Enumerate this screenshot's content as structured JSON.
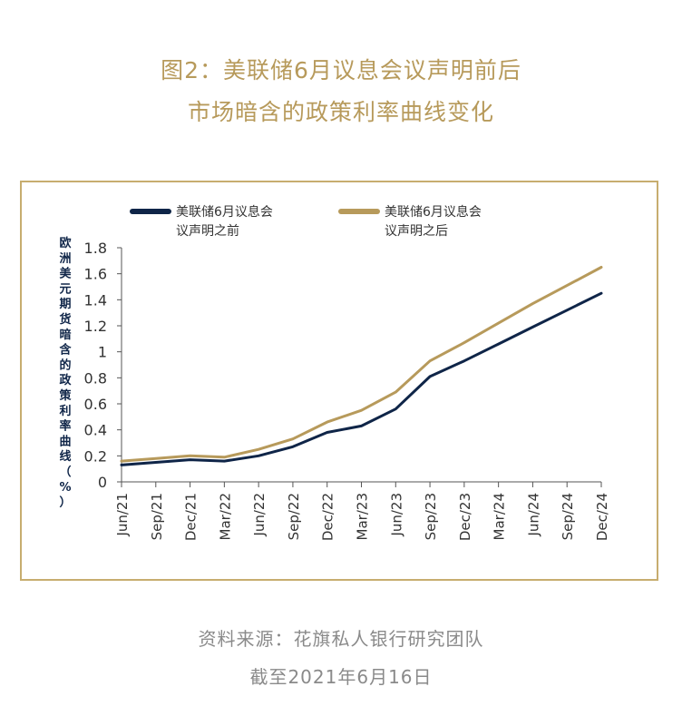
{
  "title_line1": "图2：美联储6月议息会议声明前后",
  "title_line2": "市场暗含的政策利率曲线变化",
  "source_line1": "资料来源：花旗私人银行研究团队",
  "source_line2": "截至2021年6月16日",
  "chart_data": {
    "type": "line",
    "ylabel": "欧洲美元期货暗含的政策利率曲线（%）",
    "ylim": [
      0,
      1.8
    ],
    "yticks": [
      "0",
      "0.2",
      "0.4",
      "0.6",
      "0.8",
      "1",
      "1.2",
      "1.4",
      "1.6",
      "1.8"
    ],
    "categories": [
      "Jun/21",
      "Sep/21",
      "Dec/21",
      "Mar/22",
      "Jun/22",
      "Sep/22",
      "Dec/22",
      "Mar/23",
      "Jun/23",
      "Sep/23",
      "Dec/23",
      "Mar/24",
      "Jun/24",
      "Sep/24",
      "Dec/24"
    ],
    "legend_position": "top",
    "grid": false,
    "series": [
      {
        "name": "美联储6月议息会议声明之前",
        "legend_line1": "美联储6月议息会",
        "legend_line2": "议声明之前",
        "color": "#0f2548",
        "values": [
          0.13,
          0.15,
          0.17,
          0.16,
          0.2,
          0.27,
          0.38,
          0.43,
          0.56,
          0.81,
          0.93,
          1.06,
          1.19,
          1.32,
          1.45
        ]
      },
      {
        "name": "美联储6月议息会议声明之后",
        "legend_line1": "美联储6月议息会",
        "legend_line2": "议声明之后",
        "color": "#b79a5b",
        "values": [
          0.16,
          0.18,
          0.2,
          0.19,
          0.25,
          0.33,
          0.46,
          0.55,
          0.69,
          0.93,
          1.07,
          1.22,
          1.37,
          1.51,
          1.65
        ]
      }
    ]
  }
}
